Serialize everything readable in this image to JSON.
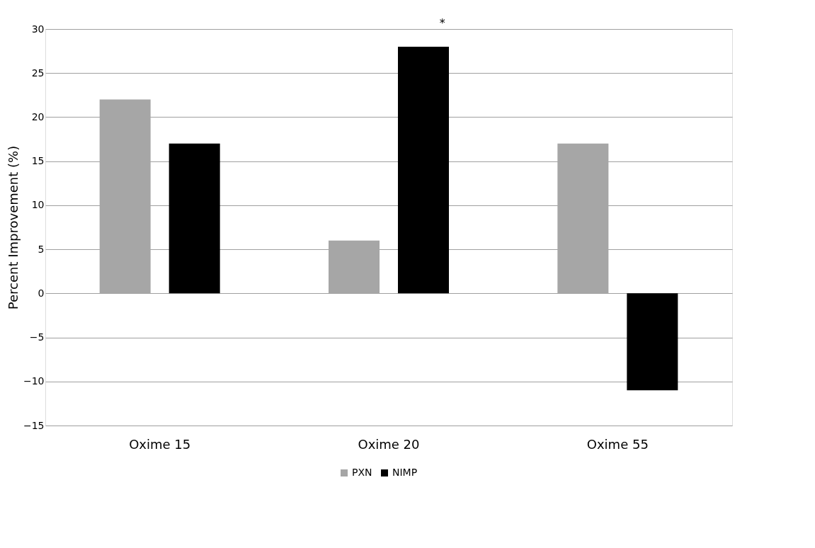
{
  "chart_data": {
    "type": "bar",
    "ylabel": "Percent Improvement (%)",
    "categories": [
      "Oxime 15",
      "Oxime 20",
      "Oxime 55"
    ],
    "series": [
      {
        "name": "PXN",
        "color": "#a6a6a6",
        "values": [
          22,
          6,
          17
        ]
      },
      {
        "name": "NIMP",
        "color": "#000000",
        "values": [
          17,
          28,
          -11
        ]
      }
    ],
    "ylim": [
      -15,
      30
    ],
    "yticks": [
      -15,
      -10,
      -5,
      0,
      5,
      10,
      15,
      20,
      25,
      30
    ],
    "grid": "y",
    "legend": "bottom",
    "annotations": [
      "*"
    ]
  }
}
